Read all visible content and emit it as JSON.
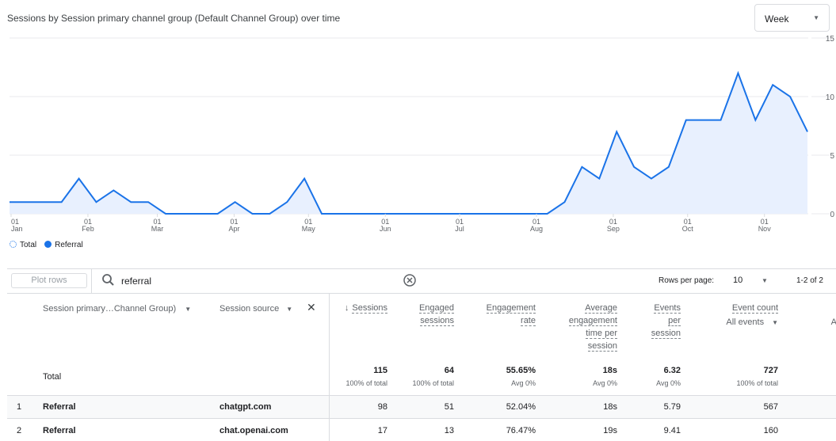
{
  "header": {
    "title": "Sessions by Session primary channel group (Default Channel Group) over time",
    "granularity": "Week"
  },
  "chart_data": {
    "type": "area",
    "title": "Sessions by Session primary channel group (Default Channel Group) over time",
    "x_ticks": [
      {
        "day": "01",
        "month": "Jan"
      },
      {
        "day": "01",
        "month": "Feb"
      },
      {
        "day": "01",
        "month": "Mar"
      },
      {
        "day": "01",
        "month": "Apr"
      },
      {
        "day": "01",
        "month": "May"
      },
      {
        "day": "01",
        "month": "Jun"
      },
      {
        "day": "01",
        "month": "Jul"
      },
      {
        "day": "01",
        "month": "Aug"
      },
      {
        "day": "01",
        "month": "Sep"
      },
      {
        "day": "01",
        "month": "Oct"
      },
      {
        "day": "01",
        "month": "Nov"
      }
    ],
    "y_ticks": [
      "0",
      "5",
      "10",
      "15"
    ],
    "ylim": [
      0,
      15
    ],
    "grid": true,
    "y_axis_side": "right",
    "legend_placement": "bottom-left",
    "series": [
      {
        "name": "Referral",
        "color": "#1a73e8",
        "fill": "#e8f0fe",
        "values": [
          1,
          1,
          1,
          1,
          3,
          1,
          2,
          1,
          1,
          0,
          0,
          0,
          0,
          1,
          0,
          0,
          1,
          3,
          0,
          0,
          0,
          0,
          0,
          0,
          0,
          0,
          0,
          0,
          0,
          0,
          0,
          0,
          1,
          4,
          3,
          7,
          4,
          3,
          4,
          8,
          8,
          8,
          12,
          8,
          11,
          10,
          7
        ]
      }
    ],
    "legend": [
      {
        "label": "Total",
        "style": "dashed-circle"
      },
      {
        "label": "Referral",
        "color": "#1a73e8"
      }
    ]
  },
  "toolbar": {
    "plot_rows": "Plot rows",
    "search_value": "referral",
    "rows_per_page_label": "Rows per page:",
    "rows_per_page": "10",
    "pagination": "1-2 of 2"
  },
  "table": {
    "dim_headers": [
      "Session primary…Channel Group)",
      "Session source"
    ],
    "metric_headers": [
      {
        "lines": [
          "Sessions"
        ],
        "sorted": true
      },
      {
        "lines": [
          "Engaged",
          "sessions"
        ]
      },
      {
        "lines": [
          "Engagement",
          "rate"
        ]
      },
      {
        "lines": [
          "Average",
          "engagement",
          "time per",
          "session"
        ]
      },
      {
        "lines": [
          "Events",
          "per",
          "session"
        ]
      },
      {
        "lines": [
          "Event count"
        ],
        "sub": "All events"
      },
      {
        "lines": [
          "Ke"
        ],
        "sub": "All e"
      }
    ],
    "total": {
      "label": "Total",
      "values": [
        "115",
        "64",
        "55.65%",
        "18s",
        "6.32",
        "727"
      ],
      "subs": [
        "100% of total",
        "100% of total",
        "Avg 0%",
        "Avg 0%",
        "Avg 0%",
        "100% of total"
      ]
    },
    "rows": [
      {
        "index": "1",
        "channel": "Referral",
        "source": "chatgpt.com",
        "values": [
          "98",
          "51",
          "52.04%",
          "18s",
          "5.79",
          "567"
        ]
      },
      {
        "index": "2",
        "channel": "Referral",
        "source": "chat.openai.com",
        "values": [
          "17",
          "13",
          "76.47%",
          "19s",
          "9.41",
          "160"
        ]
      }
    ]
  }
}
